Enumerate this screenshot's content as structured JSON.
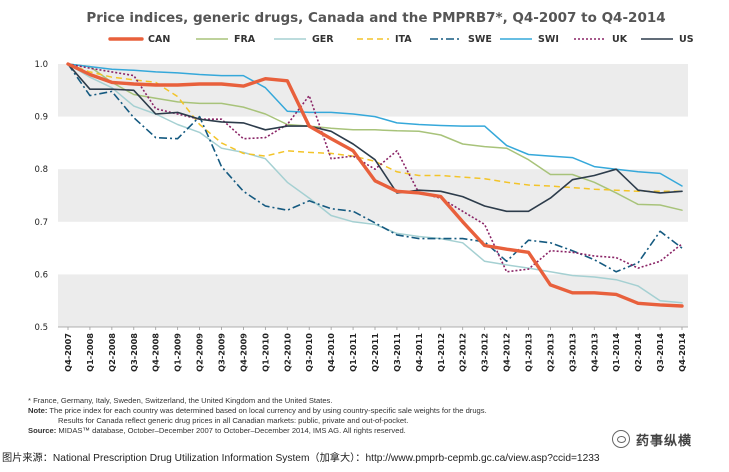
{
  "chart_data": {
    "type": "line",
    "title": "Price indices, generic drugs, Canada and the PMPRB7*, Q4-2007 to Q4-2014",
    "xlabel": "",
    "ylabel": "",
    "ylim": [
      0.5,
      1.0
    ],
    "yticks": [
      "1.0",
      "0.9",
      "0.8",
      "0.7",
      "0.6",
      "0.5"
    ],
    "ytick_values": [
      1.0,
      0.9,
      0.8,
      0.7,
      0.6,
      0.5
    ],
    "grid": "alternating horizontal bands",
    "legend_position": "top",
    "x": [
      "Q4-2007",
      "Q1-2008",
      "Q2-2008",
      "Q3-2008",
      "Q4-2008",
      "Q1-2009",
      "Q2-2009",
      "Q3-2009",
      "Q4-2009",
      "Q1-2010",
      "Q2-2010",
      "Q3-2010",
      "Q4-2010",
      "Q1-2011",
      "Q2-2011",
      "Q3-2011",
      "Q4-2011",
      "Q1-2012",
      "Q2-2012",
      "Q3-2012",
      "Q4-2012",
      "Q1-2013",
      "Q2-2013",
      "Q3-2013",
      "Q4-2013",
      "Q1-2014",
      "Q2-2014",
      "Q3-2014",
      "Q4-2014"
    ],
    "series": [
      {
        "name": "CAN",
        "color": "#e8603c",
        "dash": "solid",
        "width": 3.4,
        "values": [
          1.0,
          0.98,
          0.965,
          0.962,
          0.96,
          0.96,
          0.962,
          0.962,
          0.958,
          0.972,
          0.968,
          0.882,
          0.858,
          0.835,
          0.778,
          0.758,
          0.755,
          0.748,
          0.7,
          0.655,
          0.648,
          0.642,
          0.58,
          0.565,
          0.565,
          0.562,
          0.545,
          0.542,
          0.54
        ]
      },
      {
        "name": "FRA",
        "color": "#a8c37a",
        "dash": "solid",
        "width": 1.5,
        "values": [
          1.0,
          0.995,
          0.965,
          0.942,
          0.935,
          0.928,
          0.925,
          0.925,
          0.918,
          0.905,
          0.885,
          0.882,
          0.878,
          0.875,
          0.875,
          0.873,
          0.872,
          0.865,
          0.848,
          0.843,
          0.84,
          0.818,
          0.79,
          0.79,
          0.775,
          0.755,
          0.733,
          0.732,
          0.722
        ]
      },
      {
        "name": "GER",
        "color": "#a5d0d2",
        "dash": "solid",
        "width": 1.5,
        "values": [
          1.0,
          0.975,
          0.955,
          0.92,
          0.905,
          0.885,
          0.87,
          0.84,
          0.832,
          0.82,
          0.775,
          0.745,
          0.712,
          0.7,
          0.695,
          0.678,
          0.672,
          0.668,
          0.66,
          0.625,
          0.618,
          0.612,
          0.605,
          0.598,
          0.595,
          0.59,
          0.578,
          0.55,
          0.546
        ]
      },
      {
        "name": "ITA",
        "color": "#f3c428",
        "dash": "6,4",
        "width": 1.5,
        "values": [
          1.0,
          0.985,
          0.975,
          0.97,
          0.965,
          0.938,
          0.885,
          0.85,
          0.83,
          0.825,
          0.835,
          0.832,
          0.83,
          0.825,
          0.815,
          0.795,
          0.788,
          0.788,
          0.785,
          0.782,
          0.775,
          0.77,
          0.768,
          0.765,
          0.762,
          0.76,
          0.758,
          0.758,
          0.758
        ]
      },
      {
        "name": "SWE",
        "color": "#155a80",
        "dash": "8,3,2,3",
        "width": 1.6,
        "values": [
          1.0,
          0.94,
          0.948,
          0.898,
          0.86,
          0.858,
          0.9,
          0.805,
          0.758,
          0.73,
          0.722,
          0.74,
          0.725,
          0.72,
          0.698,
          0.675,
          0.668,
          0.668,
          0.668,
          0.662,
          0.625,
          0.665,
          0.66,
          0.645,
          0.628,
          0.605,
          0.622,
          0.682,
          0.65
        ]
      },
      {
        "name": "SWI",
        "color": "#35a8da",
        "dash": "solid",
        "width": 1.5,
        "values": [
          1.0,
          0.995,
          0.99,
          0.988,
          0.985,
          0.983,
          0.98,
          0.978,
          0.978,
          0.955,
          0.91,
          0.908,
          0.908,
          0.905,
          0.9,
          0.888,
          0.885,
          0.883,
          0.882,
          0.882,
          0.845,
          0.828,
          0.825,
          0.822,
          0.805,
          0.8,
          0.795,
          0.792,
          0.768
        ]
      },
      {
        "name": "UK",
        "color": "#8a2466",
        "dash": "2,2",
        "width": 1.6,
        "values": [
          1.0,
          0.992,
          0.985,
          0.978,
          0.915,
          0.905,
          0.895,
          0.895,
          0.858,
          0.86,
          0.885,
          0.94,
          0.82,
          0.825,
          0.8,
          0.835,
          0.755,
          0.745,
          0.72,
          0.695,
          0.605,
          0.61,
          0.645,
          0.642,
          0.635,
          0.632,
          0.612,
          0.625,
          0.658
        ]
      },
      {
        "name": "US",
        "color": "#2d3c4b",
        "dash": "solid",
        "width": 1.6,
        "values": [
          1.0,
          0.952,
          0.952,
          0.95,
          0.905,
          0.908,
          0.895,
          0.89,
          0.888,
          0.875,
          0.882,
          0.882,
          0.872,
          0.848,
          0.818,
          0.755,
          0.76,
          0.758,
          0.748,
          0.73,
          0.72,
          0.72,
          0.745,
          0.78,
          0.788,
          0.8,
          0.76,
          0.755,
          0.758
        ]
      }
    ]
  },
  "notes": {
    "footnote": "* France, Germany, Italy, Sweden, Switzerland, the United Kingdom and the United States.",
    "note_label": "Note:",
    "note_text": "The price index for each country was determined based on local currency and by using country-specific sale weights for the drugs.",
    "note_text_2": "Results for Canada reflect generic drug prices in all Canadian markets: public, private and out-of-pocket.",
    "source_label": "Source:",
    "source_text": "MIDAS™ database, October–December 2007 to October–December 2014, IMS AG. All rights reserved."
  },
  "image_source": "图片来源：National Prescription Drug Utilization Information System（加拿大）：http://www.pmprb-cepmb.gc.ca/view.asp?ccid=1233",
  "watermark": {
    "text": "药事纵横",
    "icon": "wechat-icon"
  }
}
